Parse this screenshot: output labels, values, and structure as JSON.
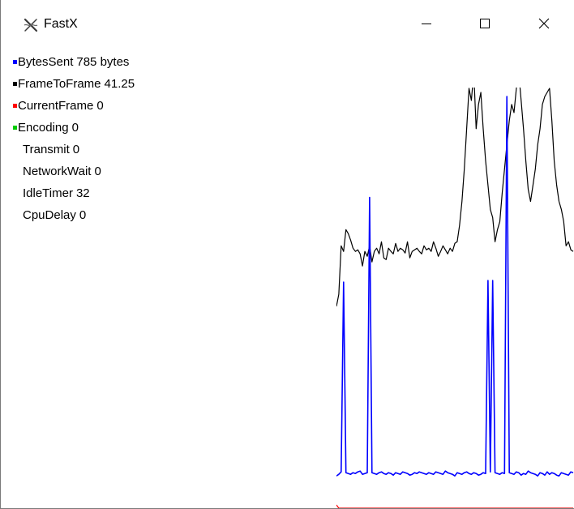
{
  "window": {
    "title": "FastX",
    "icon": "fastx-logo-icon",
    "controls": [
      "minimize-icon",
      "maximize-icon",
      "close-icon"
    ]
  },
  "legend": [
    {
      "name": "BytesSent",
      "value": "785 bytes",
      "color": "#0000ff"
    },
    {
      "name": "FrameToFrame",
      "value": "41.25",
      "color": "#000000"
    },
    {
      "name": "CurrentFrame",
      "value": "0",
      "color": "#ff0000"
    },
    {
      "name": "Encoding",
      "value": "0",
      "color": "#00cc00"
    },
    {
      "name": "Transmit",
      "value": "0",
      "color": null
    },
    {
      "name": "NetworkWait",
      "value": "0",
      "color": null
    },
    {
      "name": "IdleTimer",
      "value": "32",
      "color": null
    },
    {
      "name": "CpuDelay",
      "value": "0",
      "color": null
    }
  ],
  "chart_data": {
    "type": "line",
    "grid": false,
    "axes_shown": false,
    "series": [
      {
        "color": "#000000",
        "values": [
          250,
          265,
          325,
          318,
          345,
          340,
          332,
          322,
          318,
          320,
          315,
          300,
          318,
          312,
          325,
          305,
          318,
          322,
          315,
          330,
          310,
          308,
          322,
          318,
          315,
          328,
          318,
          322,
          320,
          316,
          330,
          310,
          318,
          320,
          322,
          318,
          315,
          325,
          320,
          322,
          318,
          330,
          322,
          312,
          318,
          325,
          320,
          315,
          322,
          318,
          328,
          330,
          350,
          380,
          420,
          470,
          520,
          505,
          540,
          470,
          500,
          515,
          470,
          430,
          400,
          370,
          360,
          330,
          345,
          355,
          390,
          420,
          450,
          480,
          500,
          490,
          520,
          540,
          505,
          470,
          430,
          395,
          380,
          400,
          420,
          450,
          470,
          500,
          510,
          515,
          520,
          480,
          430,
          400,
          380,
          370,
          355,
          325,
          330,
          320,
          318
        ]
      },
      {
        "color": "#0000ff",
        "values": [
          40,
          42,
          45,
          280,
          44,
          43,
          42,
          44,
          43,
          45,
          46,
          42,
          43,
          44,
          385,
          44,
          43,
          42,
          44,
          45,
          43,
          42,
          44,
          43,
          41,
          44,
          43,
          42,
          45,
          44,
          43,
          41,
          42,
          44,
          43,
          45,
          44,
          43,
          42,
          44,
          43,
          42,
          45,
          44,
          43,
          42,
          46,
          44,
          43,
          42,
          40,
          44,
          43,
          42,
          44,
          45,
          43,
          42,
          44,
          43,
          41,
          42,
          44,
          43,
          282,
          45,
          282,
          44,
          43,
          42,
          44,
          43,
          510,
          44,
          43,
          42,
          45,
          44,
          41,
          43,
          42,
          46,
          44,
          43,
          42,
          40,
          44,
          43,
          41,
          45,
          42,
          44,
          43,
          41,
          40,
          44,
          43,
          42,
          41,
          45,
          44
        ]
      },
      {
        "color": "#ff0000",
        "values": [
          4,
          0,
          0,
          0,
          0,
          0,
          0,
          0,
          0,
          0,
          0,
          0,
          0,
          0,
          0,
          0,
          0,
          0,
          0,
          0,
          0,
          0,
          0,
          0,
          0,
          0,
          0,
          0,
          0,
          0,
          0,
          0,
          0,
          0,
          0,
          0,
          0,
          0,
          0,
          0,
          0,
          0,
          0,
          0,
          0,
          0,
          0,
          0,
          0,
          0,
          0,
          0,
          0,
          0,
          0,
          0,
          0,
          0,
          0,
          0,
          0,
          0,
          0,
          0,
          0,
          0,
          0,
          0,
          0,
          0,
          0,
          0,
          0,
          0,
          0,
          0,
          0,
          0,
          0,
          0,
          0,
          0,
          0,
          0,
          0,
          0,
          0,
          0,
          0,
          0,
          0,
          0,
          0,
          0,
          0,
          0,
          0,
          0,
          0,
          0,
          0
        ]
      }
    ],
    "ylim": [
      0,
      520
    ]
  }
}
